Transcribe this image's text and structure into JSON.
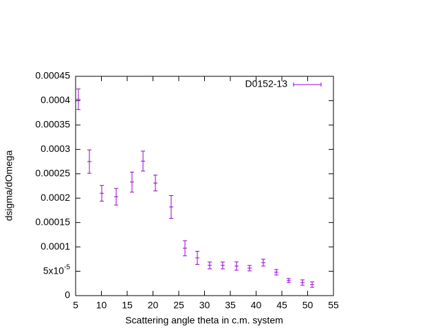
{
  "chart_data": {
    "type": "errorbar",
    "xlabel": "Scattering angle theta in c.m. system",
    "ylabel": "dsigma/dOmega",
    "xlim": [
      5,
      55
    ],
    "ylim": [
      0,
      0.00045
    ],
    "xticks": [
      5,
      10,
      15,
      20,
      25,
      30,
      35,
      40,
      45,
      50,
      55
    ],
    "yticks": [
      0,
      {
        "value": 5e-05,
        "label": "5x10-5"
      },
      0.0001,
      0.00015,
      0.0002,
      0.00025,
      0.0003,
      0.00035,
      0.0004,
      0.00045
    ],
    "legend": "top-right",
    "series": [
      {
        "name": "D0152-13",
        "color": "#9400d3",
        "x": [
          5.53,
          7.67,
          10.07,
          12.87,
          15.93,
          18.07,
          20.47,
          23.53,
          26.2,
          28.6,
          31.0,
          33.53,
          36.2,
          38.73,
          41.4,
          43.93,
          46.33,
          49.0,
          50.87
        ],
        "values": [
          0.000403,
          0.000275,
          0.00021,
          0.000203,
          0.000233,
          0.000276,
          0.000231,
          0.000182,
          9.73e-05,
          7.76e-05,
          6.2e-05,
          6.2e-05,
          6.07e-05,
          5.64e-05,
          6.77e-05,
          4.8e-05,
          3.1e-05,
          2.68e-05,
          2.26e-05
        ],
        "errors": [
          2.12e-05,
          2.4e-05,
          1.62e-05,
          1.7e-05,
          2.05e-05,
          2.05e-05,
          1.62e-05,
          2.33e-05,
          1.55e-05,
          1.34e-05,
          7e-06,
          7e-06,
          8.5e-06,
          5.6e-06,
          7e-06,
          5.6e-06,
          4.2e-06,
          5.6e-06,
          5.6e-06
        ]
      }
    ]
  }
}
